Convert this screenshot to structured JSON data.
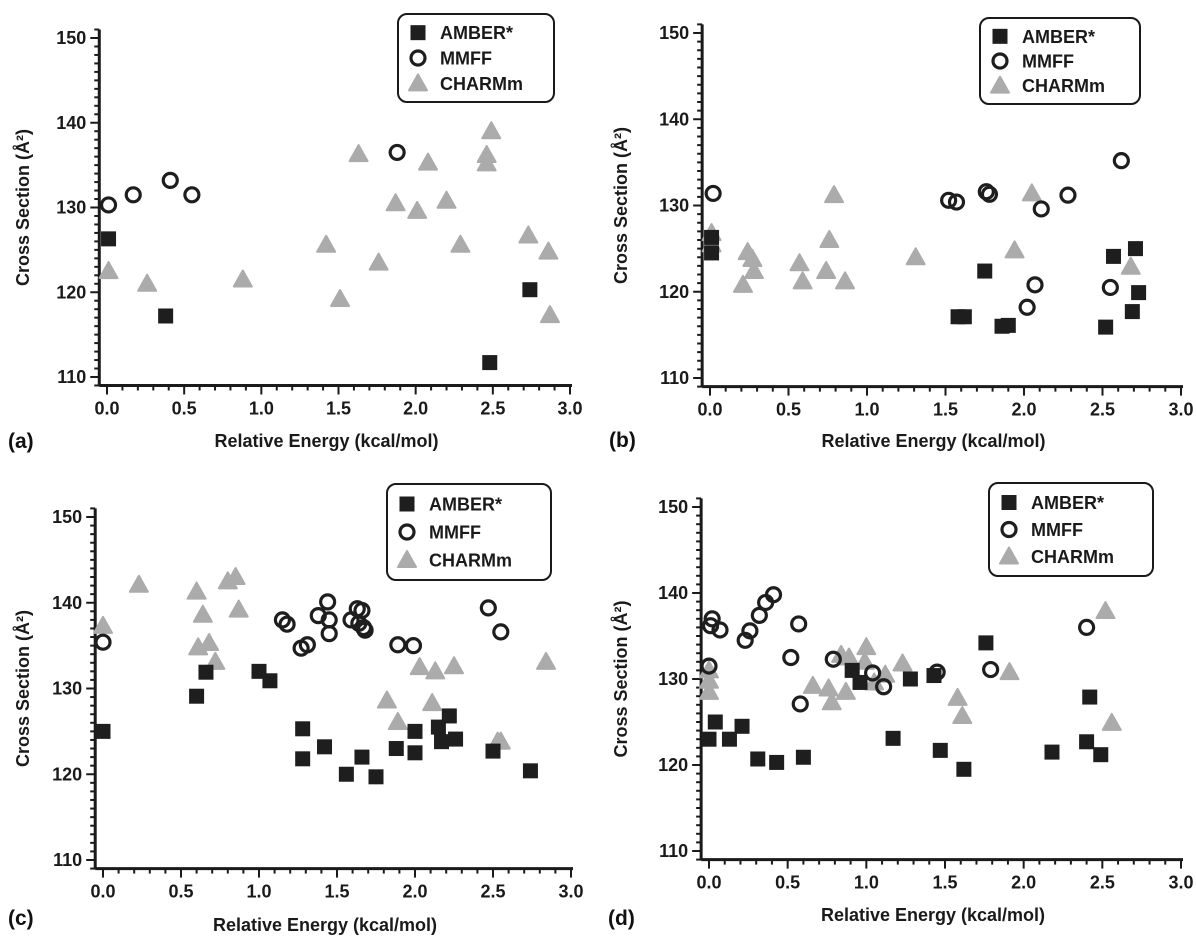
{
  "colors": {
    "amber": "#1e1e1e",
    "mmff": "#1e1e1e",
    "charmm": "#ababab",
    "axis": "#1a1a1a"
  },
  "chart_data": [
    {
      "panel": "(a)",
      "type": "scatter",
      "xlabel": "Relative Energy (kcal/mol)",
      "ylabel": "Cross Section (Å²)",
      "xlim": [
        -0.05,
        3.0
      ],
      "ylim": [
        109,
        151
      ],
      "xticks": [
        "0.0",
        "0.5",
        "1.0",
        "1.5",
        "2.0",
        "2.5",
        "3.0"
      ],
      "yticks": [
        "110",
        "120",
        "130",
        "140",
        "150"
      ],
      "legend": "top-right",
      "series": [
        {
          "name": "AMBER*",
          "marker": "square",
          "points": [
            [
              0.01,
              126.3
            ],
            [
              0.38,
              117.2
            ],
            [
              2.48,
              111.7
            ],
            [
              2.74,
              120.3
            ]
          ]
        },
        {
          "name": "MMFF",
          "marker": "circle",
          "points": [
            [
              0.01,
              130.3
            ],
            [
              0.17,
              131.5
            ],
            [
              0.41,
              133.2
            ],
            [
              0.55,
              131.5
            ],
            [
              1.88,
              136.5
            ]
          ]
        },
        {
          "name": "CHARMm",
          "marker": "triangle",
          "points": [
            [
              0.01,
              122.5
            ],
            [
              0.26,
              121.0
            ],
            [
              0.88,
              121.5
            ],
            [
              1.42,
              125.6
            ],
            [
              1.51,
              119.2
            ],
            [
              1.63,
              136.3
            ],
            [
              1.76,
              123.5
            ],
            [
              1.87,
              130.5
            ],
            [
              2.01,
              129.6
            ],
            [
              2.08,
              135.3
            ],
            [
              2.2,
              130.8
            ],
            [
              2.29,
              125.6
            ],
            [
              2.46,
              135.2
            ],
            [
              2.46,
              136.2
            ],
            [
              2.49,
              139.0
            ],
            [
              2.73,
              126.7
            ],
            [
              2.86,
              124.8
            ],
            [
              2.87,
              117.3
            ]
          ]
        }
      ]
    },
    {
      "panel": "(b)",
      "type": "scatter",
      "xlabel": "Relative Energy (kcal/mol)",
      "ylabel": "Cross Section (Å²)",
      "xlim": [
        -0.05,
        3.0
      ],
      "ylim": [
        109,
        151
      ],
      "xticks": [
        "0.0",
        "0.5",
        "1.0",
        "1.5",
        "2.0",
        "2.5",
        "3.0"
      ],
      "yticks": [
        "110",
        "120",
        "130",
        "140",
        "150"
      ],
      "legend": "top-right",
      "series": [
        {
          "name": "AMBER*",
          "marker": "square",
          "points": [
            [
              0.01,
              124.5
            ],
            [
              0.01,
              126.3
            ],
            [
              1.58,
              117.1
            ],
            [
              1.62,
              117.1
            ],
            [
              1.75,
              122.4
            ],
            [
              1.86,
              116.0
            ],
            [
              1.9,
              116.1
            ],
            [
              2.52,
              115.9
            ],
            [
              2.57,
              124.1
            ],
            [
              2.69,
              117.7
            ],
            [
              2.71,
              125.0
            ],
            [
              2.73,
              119.9
            ]
          ]
        },
        {
          "name": "MMFF",
          "marker": "circle",
          "points": [
            [
              0.02,
              131.4
            ],
            [
              1.52,
              130.6
            ],
            [
              1.57,
              130.4
            ],
            [
              1.76,
              131.6
            ],
            [
              1.78,
              131.3
            ],
            [
              2.02,
              118.2
            ],
            [
              2.07,
              120.8
            ],
            [
              2.11,
              129.6
            ],
            [
              2.28,
              131.2
            ],
            [
              2.55,
              120.5
            ],
            [
              2.62,
              135.2
            ]
          ]
        },
        {
          "name": "CHARMm",
          "marker": "triangle",
          "points": [
            [
              0.01,
              125.5
            ],
            [
              0.01,
              126.8
            ],
            [
              0.21,
              120.8
            ],
            [
              0.24,
              124.6
            ],
            [
              0.27,
              123.8
            ],
            [
              0.28,
              122.4
            ],
            [
              0.57,
              123.3
            ],
            [
              0.59,
              121.2
            ],
            [
              0.74,
              122.4
            ],
            [
              0.76,
              126.0
            ],
            [
              0.79,
              131.2
            ],
            [
              0.86,
              121.2
            ],
            [
              1.31,
              124.0
            ],
            [
              1.94,
              124.8
            ],
            [
              2.05,
              131.4
            ],
            [
              2.68,
              122.9
            ]
          ]
        }
      ]
    },
    {
      "panel": "(c)",
      "type": "scatter",
      "xlabel": "Relative Energy (kcal/mol)",
      "ylabel": "Cross Section (Å²)",
      "xlim": [
        -0.05,
        3.0
      ],
      "ylim": [
        109,
        151
      ],
      "xticks": [
        "0.0",
        "0.5",
        "1.0",
        "1.5",
        "2.0",
        "2.5",
        "3.0"
      ],
      "yticks": [
        "110",
        "120",
        "130",
        "140",
        "150"
      ],
      "legend": "top-right",
      "series": [
        {
          "name": "AMBER*",
          "marker": "square",
          "points": [
            [
              0.0,
              125.0
            ],
            [
              0.6,
              129.1
            ],
            [
              0.66,
              131.9
            ],
            [
              1.0,
              132.0
            ],
            [
              1.07,
              130.9
            ],
            [
              1.28,
              125.3
            ],
            [
              1.28,
              121.8
            ],
            [
              1.42,
              123.2
            ],
            [
              1.56,
              120.0
            ],
            [
              1.66,
              122.0
            ],
            [
              1.75,
              119.7
            ],
            [
              1.88,
              123.0
            ],
            [
              2.0,
              125.0
            ],
            [
              2.0,
              122.5
            ],
            [
              2.15,
              125.5
            ],
            [
              2.17,
              123.8
            ],
            [
              2.22,
              126.8
            ],
            [
              2.26,
              124.1
            ],
            [
              2.5,
              122.7
            ],
            [
              2.74,
              120.4
            ]
          ]
        },
        {
          "name": "MMFF",
          "marker": "circle",
          "points": [
            [
              0.0,
              135.4
            ],
            [
              1.15,
              138.0
            ],
            [
              1.18,
              137.5
            ],
            [
              1.27,
              134.7
            ],
            [
              1.31,
              135.1
            ],
            [
              1.38,
              138.5
            ],
            [
              1.44,
              140.1
            ],
            [
              1.45,
              138.0
            ],
            [
              1.45,
              136.4
            ],
            [
              1.59,
              138.0
            ],
            [
              1.63,
              139.3
            ],
            [
              1.64,
              137.6
            ],
            [
              1.66,
              139.1
            ],
            [
              1.67,
              137.1
            ],
            [
              1.68,
              136.8
            ],
            [
              1.89,
              135.1
            ],
            [
              1.99,
              135.0
            ],
            [
              2.47,
              139.4
            ],
            [
              2.55,
              136.6
            ]
          ]
        },
        {
          "name": "CHARMm",
          "marker": "triangle",
          "points": [
            [
              0.0,
              137.3
            ],
            [
              0.23,
              142.1
            ],
            [
              0.6,
              141.3
            ],
            [
              0.61,
              134.8
            ],
            [
              0.64,
              138.6
            ],
            [
              0.68,
              135.3
            ],
            [
              0.72,
              133.1
            ],
            [
              0.8,
              142.5
            ],
            [
              0.85,
              143.0
            ],
            [
              0.87,
              139.2
            ],
            [
              1.82,
              128.6
            ],
            [
              1.89,
              126.1
            ],
            [
              2.03,
              132.5
            ],
            [
              2.11,
              128.3
            ],
            [
              2.13,
              132.0
            ],
            [
              2.25,
              132.6
            ],
            [
              2.53,
              123.8
            ],
            [
              2.55,
              123.8
            ],
            [
              2.84,
              133.1
            ]
          ]
        }
      ]
    },
    {
      "panel": "(d)",
      "type": "scatter",
      "xlabel": "Relative Energy (kcal/mol)",
      "ylabel": "Cross Section (Å²)",
      "xlim": [
        -0.05,
        3.0
      ],
      "ylim": [
        109,
        151
      ],
      "xticks": [
        "0.0",
        "0.5",
        "1.0",
        "1.5",
        "2.0",
        "2.5",
        "3.0"
      ],
      "yticks": [
        "110",
        "120",
        "130",
        "140",
        "150"
      ],
      "legend": "top-right",
      "series": [
        {
          "name": "AMBER*",
          "marker": "square",
          "points": [
            [
              0.0,
              123.0
            ],
            [
              0.04,
              125.0
            ],
            [
              0.13,
              123.0
            ],
            [
              0.21,
              124.5
            ],
            [
              0.31,
              120.7
            ],
            [
              0.43,
              120.3
            ],
            [
              0.6,
              120.9
            ],
            [
              0.91,
              131.0
            ],
            [
              0.96,
              129.6
            ],
            [
              1.17,
              123.1
            ],
            [
              1.28,
              130.0
            ],
            [
              1.43,
              130.4
            ],
            [
              1.47,
              121.7
            ],
            [
              1.62,
              119.5
            ],
            [
              1.76,
              134.2
            ],
            [
              2.18,
              121.5
            ],
            [
              2.4,
              122.7
            ],
            [
              2.42,
              127.9
            ],
            [
              2.49,
              121.2
            ]
          ]
        },
        {
          "name": "MMFF",
          "marker": "circle",
          "points": [
            [
              0.0,
              131.5
            ],
            [
              0.01,
              136.2
            ],
            [
              0.02,
              137.0
            ],
            [
              0.07,
              135.7
            ],
            [
              0.23,
              134.5
            ],
            [
              0.26,
              135.6
            ],
            [
              0.32,
              137.4
            ],
            [
              0.36,
              138.9
            ],
            [
              0.41,
              139.8
            ],
            [
              0.52,
              132.5
            ],
            [
              0.57,
              136.4
            ],
            [
              0.58,
              127.1
            ],
            [
              0.79,
              132.3
            ],
            [
              1.04,
              130.7
            ],
            [
              1.11,
              129.1
            ],
            [
              1.45,
              130.8
            ],
            [
              1.79,
              131.1
            ],
            [
              2.4,
              136.0
            ]
          ]
        },
        {
          "name": "CHARMm",
          "marker": "triangle",
          "points": [
            [
              0.0,
              128.5
            ],
            [
              0.0,
              129.8
            ],
            [
              0.0,
              131.0
            ],
            [
              0.66,
              129.2
            ],
            [
              0.76,
              128.9
            ],
            [
              0.78,
              127.3
            ],
            [
              0.84,
              132.8
            ],
            [
              0.87,
              128.5
            ],
            [
              0.89,
              132.5
            ],
            [
              0.99,
              132.0
            ],
            [
              1.0,
              133.7
            ],
            [
              1.05,
              129.6
            ],
            [
              1.12,
              130.5
            ],
            [
              1.23,
              131.8
            ],
            [
              1.58,
              127.8
            ],
            [
              1.61,
              125.7
            ],
            [
              1.91,
              130.8
            ],
            [
              2.52,
              137.9
            ],
            [
              2.56,
              124.9
            ]
          ]
        }
      ]
    }
  ]
}
